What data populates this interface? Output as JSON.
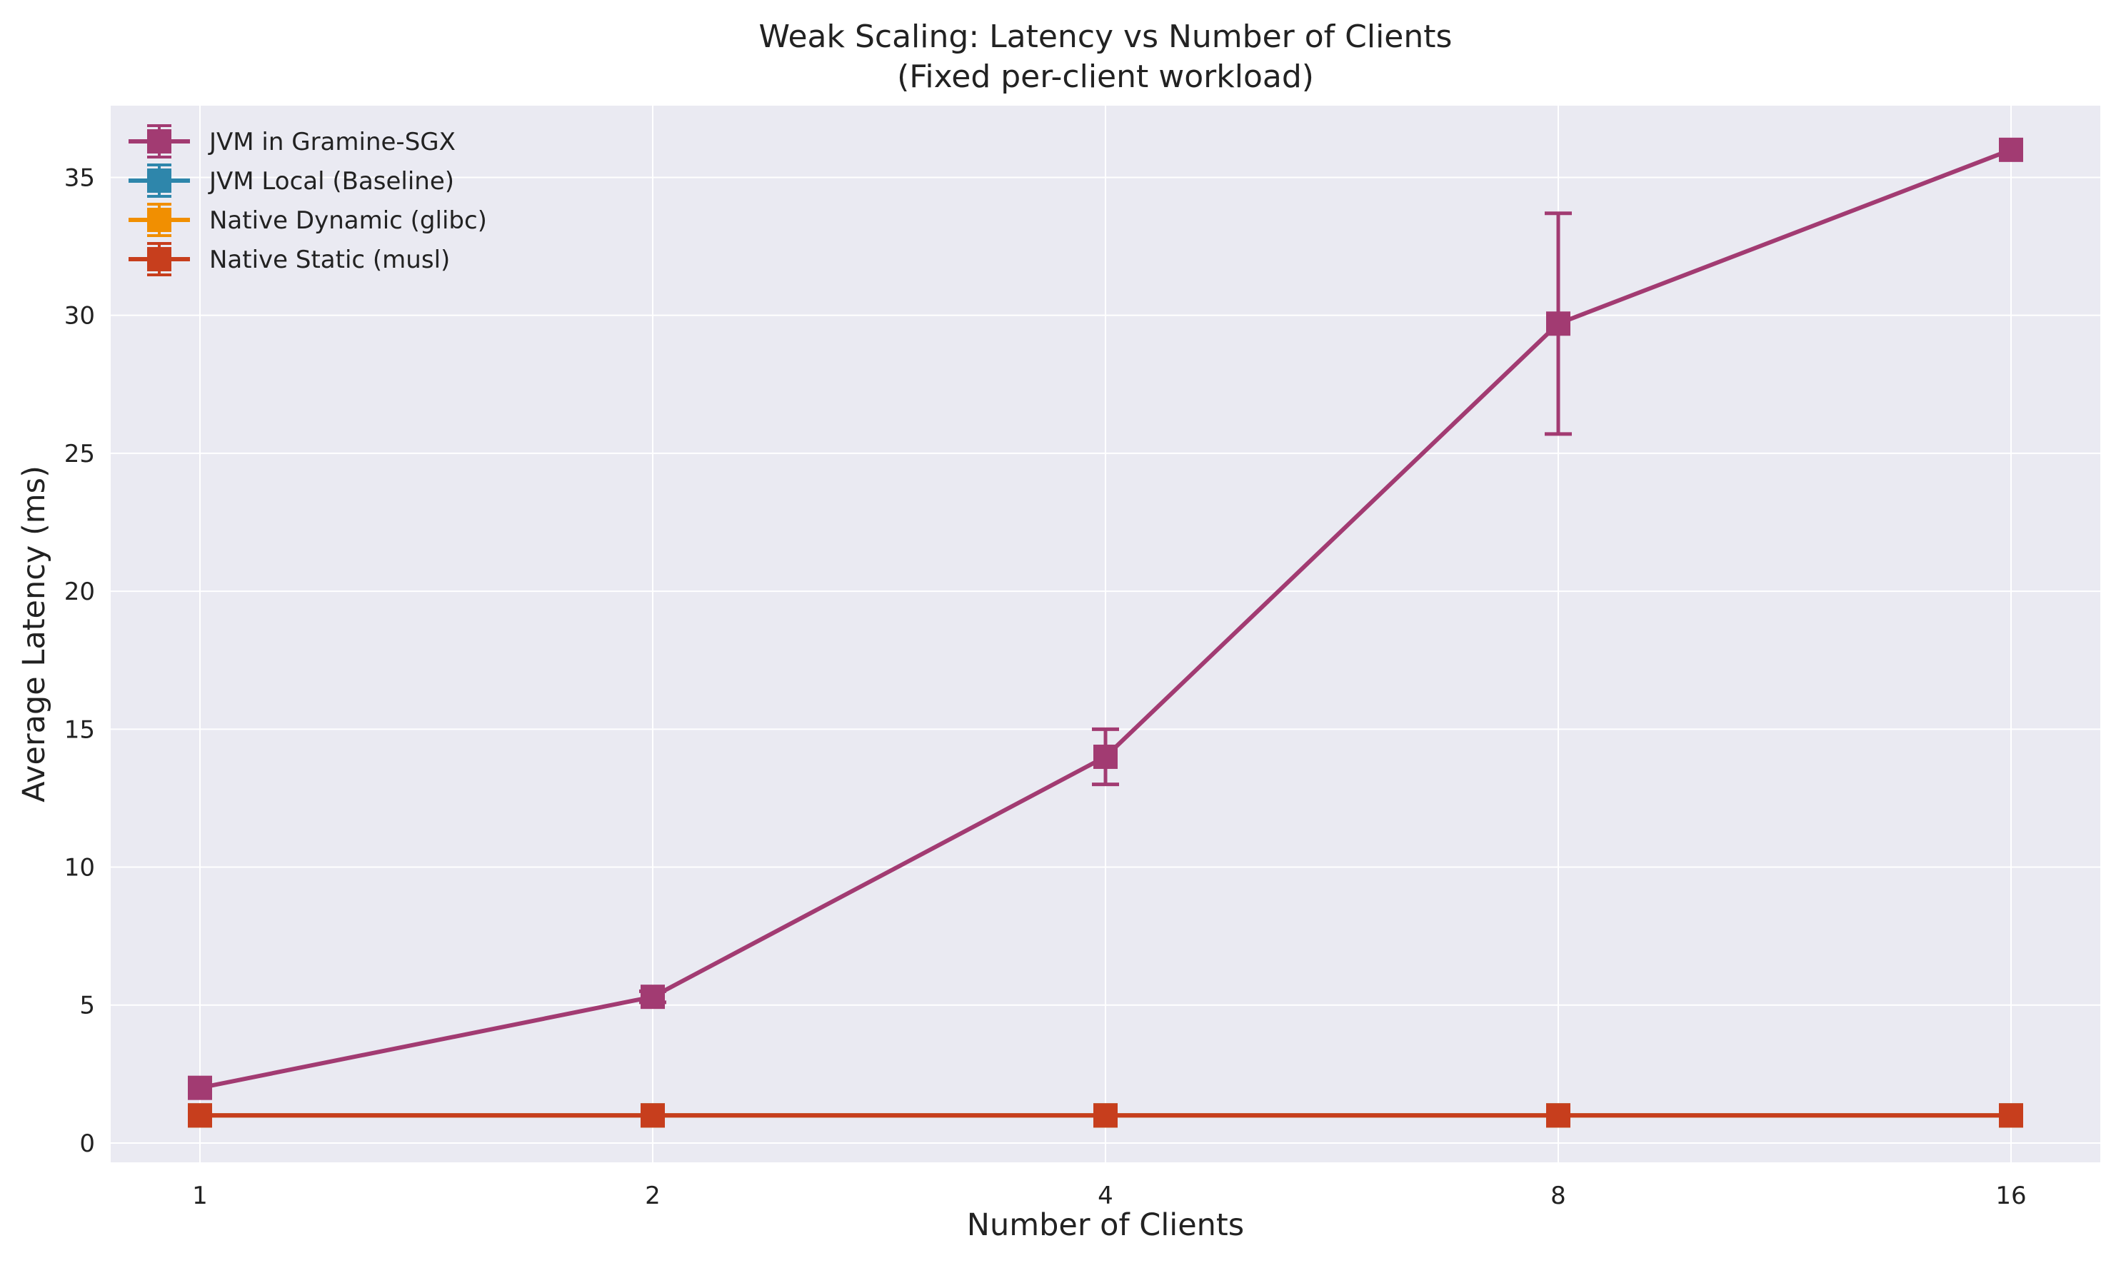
{
  "chart_data": {
    "type": "line",
    "title": "Weak Scaling: Latency vs Number of Clients",
    "subtitle": "(Fixed per-client workload)",
    "xlabel": "Number of Clients",
    "ylabel": "Average Latency (ms)",
    "x_scale": "log2",
    "x": [
      1,
      2,
      4,
      8,
      16
    ],
    "x_tick_labels": [
      "1",
      "2",
      "4",
      "8",
      "16"
    ],
    "ylim": [
      -0.7,
      37.6
    ],
    "y_ticks": [
      0,
      5,
      10,
      15,
      20,
      25,
      30,
      35
    ],
    "y_tick_labels": [
      "0",
      "5",
      "10",
      "15",
      "20",
      "25",
      "30",
      "35"
    ],
    "grid": true,
    "legend_position": "top-left",
    "marker": "square",
    "series": [
      {
        "name": "JVM in Gramine-SGX",
        "color": "#a23b72",
        "values": [
          2.0,
          5.3,
          14.0,
          29.7,
          36.0
        ],
        "error": [
          0.0,
          0.2,
          1.0,
          4.0,
          0.0
        ]
      },
      {
        "name": "JVM Local (Baseline)",
        "color": "#2e86ab",
        "values": [
          1.0,
          1.0,
          1.0,
          1.0,
          1.0
        ],
        "error": [
          0,
          0,
          0,
          0,
          0
        ]
      },
      {
        "name": "Native Dynamic (glibc)",
        "color": "#f18f01",
        "values": [
          1.0,
          1.0,
          1.0,
          1.0,
          1.0
        ],
        "error": [
          0,
          0,
          0,
          0,
          0
        ]
      },
      {
        "name": "Native Static (musl)",
        "color": "#c73e1d",
        "values": [
          1.0,
          1.0,
          1.0,
          1.0,
          1.0
        ],
        "error": [
          0,
          0,
          0,
          0,
          0
        ]
      }
    ]
  }
}
